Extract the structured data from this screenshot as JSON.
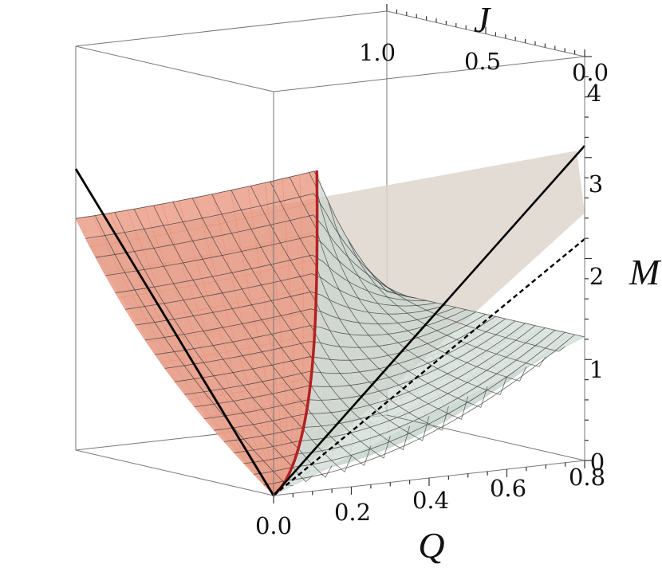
{
  "chart_data": {
    "type": "surface3d",
    "axes": {
      "x": {
        "label": "Q",
        "range": [
          0.0,
          0.8
        ],
        "ticks": [
          "0.0",
          "0.2",
          "0.4",
          "0.6",
          "0.8"
        ]
      },
      "y": {
        "label": "J",
        "range": [
          0.0,
          1.0
        ],
        "ticks": [
          "1.0",
          "0.5",
          "0.0"
        ]
      },
      "z": {
        "label": "M",
        "range": [
          0,
          4
        ],
        "ticks": [
          "0",
          "1",
          "2",
          "3",
          "4"
        ]
      }
    },
    "surfaces": [
      {
        "name": "",
        "color": "#e9967f",
        "opacity": 0.78
      },
      {
        "name": "",
        "color": "#c9d6cf",
        "opacity": 0.65
      },
      {
        "name": "",
        "color": "#ddd6cc",
        "opacity": 0.85
      }
    ],
    "curves": [
      {
        "name": "",
        "color": "#b22222",
        "style": "solid"
      },
      {
        "name": "",
        "color": "#000000",
        "style": "solid"
      },
      {
        "name": "",
        "color": "#000000",
        "style": "dashed"
      }
    ],
    "grid": false
  }
}
